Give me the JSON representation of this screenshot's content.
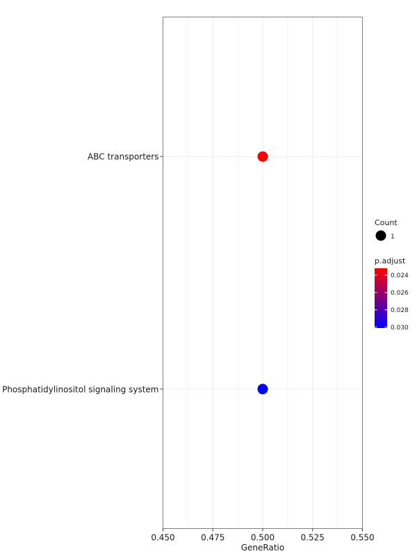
{
  "chart_data": {
    "type": "scatter",
    "xlabel": "GeneRatio",
    "ylabel": "",
    "xlim": [
      0.45,
      0.55
    ],
    "x_ticks": [
      "0.450",
      "0.475",
      "0.500",
      "0.525",
      "0.550"
    ],
    "x_tick_values": [
      0.45,
      0.475,
      0.5,
      0.525,
      0.55
    ],
    "categories": [
      "ABC transporters",
      "Phosphatidylinositol signaling system"
    ],
    "points": [
      {
        "label": "ABC transporters",
        "x": 0.5,
        "count": 1,
        "p_adjust": 0.0232,
        "color": "#ff0000"
      },
      {
        "label": "Phosphatidylinositol signaling system",
        "x": 0.5,
        "count": 1,
        "p_adjust": 0.0301,
        "color": "#0000ff"
      }
    ],
    "grid": true,
    "legend": {
      "placement": "right",
      "size": {
        "title": "Count",
        "entries": [
          "1"
        ]
      },
      "color": {
        "title": "p.adjust",
        "ticks": [
          "0.024",
          "0.026",
          "0.028",
          "0.030"
        ],
        "tick_values": [
          0.024,
          0.026,
          0.028,
          0.03
        ],
        "range": [
          0.0232,
          0.0301
        ],
        "high_color": "#ff0000",
        "low_color": "#0000ff"
      }
    }
  }
}
